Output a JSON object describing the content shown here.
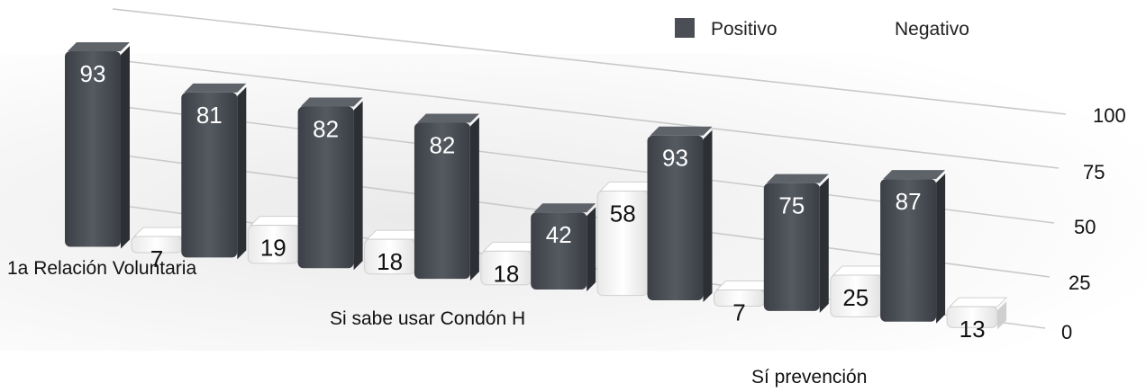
{
  "chart_data": {
    "type": "bar",
    "title": "",
    "xlabel": "",
    "ylabel": "",
    "categories": [
      "1a Relación Voluntaria",
      "",
      "",
      "Si sabe usar Condón H",
      "",
      "",
      "Sí prevención",
      ""
    ],
    "series": [
      {
        "name": "Positivo",
        "color": "#4b4f55",
        "values": [
          93,
          81,
          82,
          82,
          42,
          93,
          75,
          87
        ]
      },
      {
        "name": "Negativo",
        "color": "#f6f6f6",
        "values": [
          7,
          19,
          18,
          18,
          58,
          7,
          25,
          13
        ]
      }
    ],
    "ylim": [
      0,
      100
    ],
    "yticks": [
      "0",
      "25",
      "50",
      "75",
      "100"
    ],
    "grid": true,
    "legend": "top-right"
  }
}
